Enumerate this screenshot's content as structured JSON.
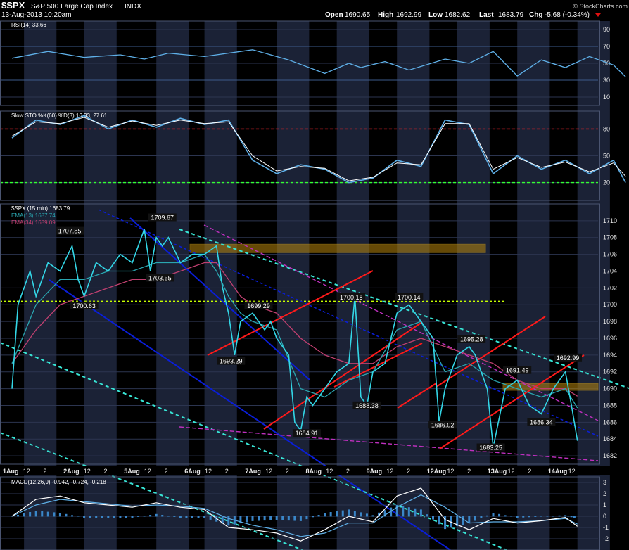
{
  "header": {
    "symbol": "$SPX",
    "name": "S&P 500 Large Cap Index",
    "exchange": "INDX",
    "datetime": "13-Aug-2013 10:20am",
    "open_label": "Open",
    "open": "1690.65",
    "high_label": "High",
    "high": "1692.99",
    "low_label": "Low",
    "low": "1682.62",
    "last_label": "Last",
    "last": "1683.79",
    "chg_label": "Chg",
    "chg": "-5.68 (-0.34%)",
    "watermark": "© StockCharts.com"
  },
  "colors": {
    "price": "#33d6e6",
    "ema13": "#2aa6b0",
    "ema34": "#c04070",
    "band": "#1b2236",
    "red": "#ff1a1a",
    "blue": "#0a1ed8",
    "teal": "#38e6d6",
    "magenta": "#c030c0",
    "lime": "#c6ff00",
    "gold": "#b8860b",
    "oscillator": "#5fb0e8",
    "overbought": "#ff2020",
    "oversold": "#33ff33"
  },
  "chart_data": [
    {
      "type": "line",
      "panel": "rsi",
      "legend": "RSI(14) 33.66",
      "ylim": [
        0,
        100
      ],
      "yticks": [
        10,
        30,
        50,
        70,
        90
      ],
      "series": [
        {
          "name": "RSI(14)",
          "x": [
            0,
            3,
            6,
            9,
            11,
            13,
            16,
            20,
            23,
            26,
            28,
            29,
            31,
            33,
            36,
            38,
            40,
            42,
            44,
            46,
            48,
            50,
            51
          ],
          "y": [
            56,
            64,
            57,
            60,
            55,
            62,
            58,
            66,
            54,
            38,
            50,
            45,
            52,
            42,
            55,
            50,
            64,
            35,
            54,
            45,
            58,
            48,
            34
          ]
        }
      ]
    },
    {
      "type": "line",
      "panel": "stochastics",
      "legend": "Slow STO %K(60) %D(3) 16.33, 27.61",
      "ylim": [
        0,
        100
      ],
      "yticks": [
        20,
        50,
        80
      ],
      "series": [
        {
          "name": "%K",
          "x": [
            0,
            2,
            4,
            6,
            8,
            10,
            12,
            14,
            16,
            18,
            20,
            22,
            24,
            26,
            28,
            30,
            32,
            34,
            36,
            38,
            40,
            42,
            44,
            46,
            48,
            50,
            51
          ],
          "y": [
            70,
            90,
            85,
            95,
            80,
            90,
            82,
            92,
            85,
            90,
            45,
            30,
            40,
            35,
            20,
            25,
            45,
            38,
            90,
            85,
            30,
            50,
            35,
            45,
            30,
            45,
            20
          ]
        },
        {
          "name": "%D",
          "x": [
            0,
            2,
            4,
            6,
            8,
            10,
            12,
            14,
            16,
            18,
            20,
            22,
            24,
            26,
            28,
            30,
            32,
            34,
            36,
            38,
            40,
            42,
            44,
            46,
            48,
            50,
            51
          ],
          "y": [
            72,
            88,
            86,
            93,
            82,
            89,
            84,
            90,
            86,
            88,
            50,
            33,
            38,
            36,
            22,
            26,
            42,
            40,
            86,
            86,
            35,
            48,
            37,
            43,
            32,
            42,
            27
          ]
        }
      ]
    },
    {
      "type": "line",
      "panel": "price",
      "title": "$SPX (15 min) 1683.79",
      "legend": [
        "EMA(13) 1687.74",
        "EMA(34) 1689.09"
      ],
      "ylim": [
        1681,
        1712
      ],
      "yticks": [
        1682,
        1684,
        1686,
        1688,
        1690,
        1692,
        1694,
        1696,
        1698,
        1700,
        1702,
        1704,
        1706,
        1708,
        1710
      ],
      "xticks": [
        "1Aug",
        "12",
        "2",
        "2Aug",
        "12",
        "2",
        "5Aug",
        "12",
        "2",
        "6Aug",
        "12",
        "2",
        "7Aug",
        "12",
        "2",
        "8Aug",
        "12",
        "2",
        "9Aug",
        "12",
        "2",
        "12Aug",
        "12",
        "2",
        "13Aug",
        "12",
        "2",
        "14Aug",
        "12"
      ],
      "annotations": [
        {
          "text": "1709.67",
          "x": 12.5,
          "y": 1710.2
        },
        {
          "text": "1707.85",
          "x": 4.8,
          "y": 1708.6
        },
        {
          "text": "1703.55",
          "x": 12.3,
          "y": 1703.0
        },
        {
          "text": "1700.63",
          "x": 6.0,
          "y": 1699.7
        },
        {
          "text": "1699.29",
          "x": 20.5,
          "y": 1699.7
        },
        {
          "text": "1693.29",
          "x": 18.2,
          "y": 1693.1
        },
        {
          "text": "1700.18",
          "x": 28.2,
          "y": 1700.7
        },
        {
          "text": "1700.14",
          "x": 33.0,
          "y": 1700.7
        },
        {
          "text": "1684.91",
          "x": 24.5,
          "y": 1684.5
        },
        {
          "text": "1688.38",
          "x": 29.5,
          "y": 1687.8
        },
        {
          "text": "1695.28",
          "x": 38.2,
          "y": 1695.7
        },
        {
          "text": "1686.02",
          "x": 35.8,
          "y": 1685.5
        },
        {
          "text": "1691.49",
          "x": 42.0,
          "y": 1692.0
        },
        {
          "text": "1683.25",
          "x": 39.8,
          "y": 1682.8
        },
        {
          "text": "1692.99",
          "x": 46.2,
          "y": 1693.5
        },
        {
          "text": "1686.34",
          "x": 44.0,
          "y": 1685.8
        }
      ],
      "series": [
        {
          "name": "$SPX",
          "x": [
            0,
            0.5,
            1,
            1.5,
            2,
            3,
            4,
            5,
            5.5,
            6,
            6.5,
            7,
            8,
            9,
            10,
            11,
            11.5,
            12,
            12.5,
            13,
            14,
            15,
            16,
            17,
            17.5,
            18,
            18.5,
            19,
            20,
            21,
            21.5,
            22,
            23,
            23.5,
            24,
            24.5,
            25,
            26,
            27,
            28,
            28.5,
            29,
            29.5,
            30,
            31,
            32,
            33,
            34,
            35,
            35.5,
            36,
            37,
            38,
            38.5,
            39,
            39.5,
            40,
            41,
            42,
            43,
            44,
            45,
            46,
            46.5,
            47
          ],
          "y": [
            1690,
            1700,
            1702,
            1704,
            1701,
            1705,
            1704,
            1707,
            1703,
            1701,
            1703,
            1705,
            1704,
            1706,
            1705,
            1709,
            1704,
            1708,
            1707,
            1708,
            1705,
            1706,
            1706,
            1707,
            1702,
            1699,
            1694,
            1698,
            1699,
            1697,
            1698,
            1696,
            1694,
            1686,
            1685,
            1689,
            1688,
            1690,
            1692,
            1693,
            1701,
            1689,
            1688,
            1692,
            1693,
            1699,
            1700,
            1698,
            1696,
            1686,
            1690,
            1694,
            1695,
            1694,
            1692,
            1690,
            1683,
            1690,
            1691,
            1688,
            1687,
            1690,
            1692,
            1688,
            1683.8
          ]
        },
        {
          "name": "EMA(13)",
          "x": [
            0,
            2,
            4,
            6,
            8,
            10,
            12,
            14,
            16,
            17,
            18,
            19,
            20,
            22,
            24,
            26,
            28,
            30,
            32,
            34,
            36,
            38,
            40,
            42,
            44,
            46,
            47
          ],
          "y": [
            1693,
            1700,
            1703,
            1703,
            1704,
            1704,
            1705,
            1705,
            1706,
            1704,
            1701,
            1699,
            1698,
            1697,
            1690,
            1689,
            1691,
            1692,
            1697,
            1698,
            1692,
            1693,
            1691,
            1690,
            1689,
            1690,
            1687.7
          ]
        },
        {
          "name": "EMA(34)",
          "x": [
            0,
            2,
            4,
            6,
            8,
            10,
            12,
            14,
            16,
            17,
            18,
            19,
            20,
            22,
            24,
            26,
            28,
            30,
            32,
            34,
            36,
            38,
            40,
            42,
            44,
            46,
            47
          ],
          "y": [
            1693,
            1697,
            1700,
            1701,
            1702,
            1703,
            1703,
            1704,
            1705,
            1705,
            1703,
            1701,
            1700,
            1699,
            1696,
            1694,
            1693,
            1693,
            1695,
            1696,
            1695,
            1694,
            1693,
            1691,
            1690,
            1690,
            1689.1
          ]
        }
      ]
    },
    {
      "type": "line",
      "panel": "macd",
      "legend": "MACD(12,26,9) -0.942, -0.724, -0.218",
      "ylim": [
        -3,
        3.5
      ],
      "yticks": [
        -2,
        -1,
        0,
        1,
        2,
        3
      ],
      "series": [
        {
          "name": "MACD",
          "x": [
            0,
            2,
            4,
            6,
            8,
            10,
            12,
            14,
            16,
            18,
            20,
            22,
            24,
            26,
            28,
            30,
            32,
            34,
            36,
            38,
            40,
            42,
            44,
            46,
            47
          ],
          "y": [
            0,
            1.5,
            1.8,
            1.2,
            1,
            0.8,
            1.2,
            0.8,
            0.6,
            -1,
            -1.2,
            -1.5,
            -2.2,
            -1.2,
            0,
            -0.5,
            1.8,
            2.5,
            -0.3,
            -1.2,
            -0.2,
            -0.6,
            -0.4,
            -0.1,
            -0.9
          ]
        },
        {
          "name": "Signal",
          "x": [
            0,
            2,
            4,
            6,
            8,
            10,
            12,
            14,
            16,
            18,
            20,
            22,
            24,
            26,
            28,
            30,
            32,
            34,
            36,
            38,
            40,
            42,
            44,
            46,
            47
          ],
          "y": [
            0,
            1,
            1.5,
            1.3,
            1.1,
            0.9,
            1,
            0.9,
            0.7,
            -0.2,
            -0.8,
            -1.2,
            -1.8,
            -1.5,
            -0.6,
            -0.6,
            0.8,
            1.9,
            0.8,
            -0.6,
            -0.5,
            -0.5,
            -0.4,
            -0.2,
            -0.7
          ]
        }
      ]
    }
  ]
}
